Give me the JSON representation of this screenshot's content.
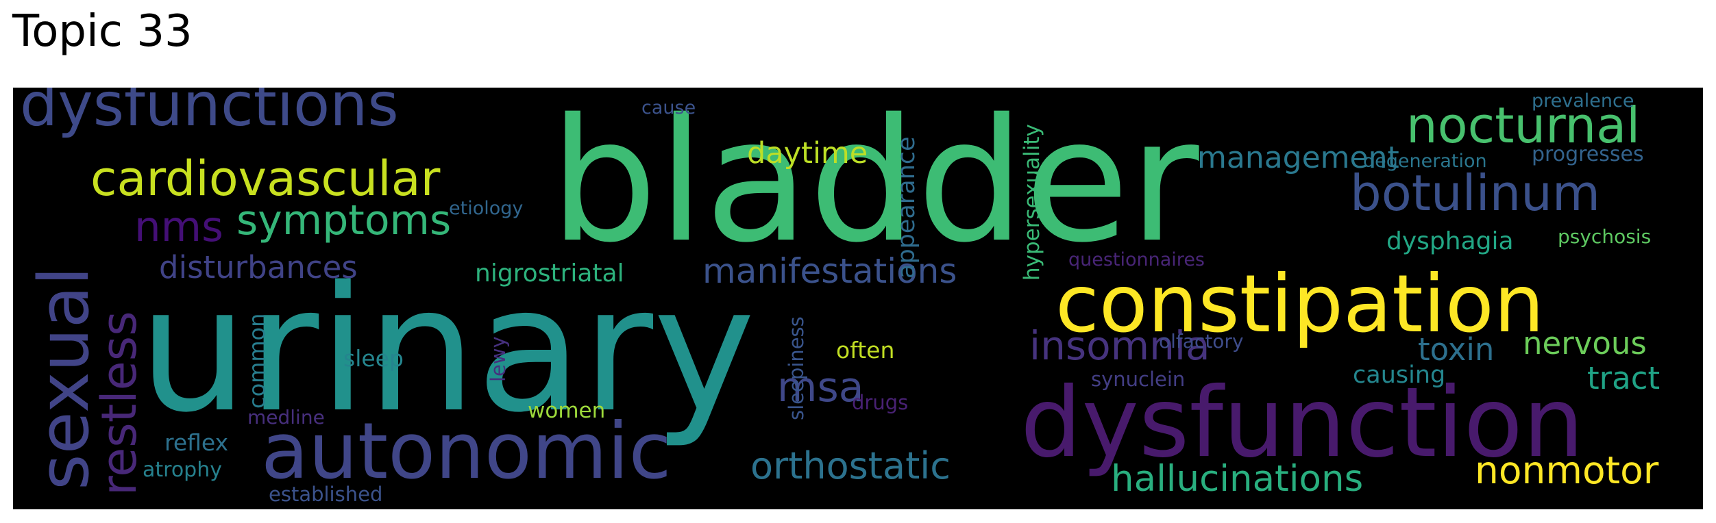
{
  "title": "Topic 33",
  "words": [
    {
      "text": "bladder",
      "color": "#3dbc74"
    },
    {
      "text": "urinary",
      "color": "#21918c"
    },
    {
      "text": "dysfunction",
      "color": "#481a6c"
    },
    {
      "text": "constipation",
      "color": "#fde725"
    },
    {
      "text": "autonomic",
      "color": "#404688"
    },
    {
      "text": "sexual",
      "color": "#414487"
    },
    {
      "text": "dysfunctions",
      "color": "#3e4a89"
    },
    {
      "text": "cardiovascular",
      "color": "#c8e020"
    },
    {
      "text": "nocturnal",
      "color": "#48c16e"
    },
    {
      "text": "botulinum",
      "color": "#3b518b"
    },
    {
      "text": "restless",
      "color": "#482878"
    },
    {
      "text": "symptoms",
      "color": "#35b779"
    },
    {
      "text": "nms",
      "color": "#440f76"
    },
    {
      "text": "insomnia",
      "color": "#46337e"
    },
    {
      "text": "manifestations",
      "color": "#3b528b"
    },
    {
      "text": "msa",
      "color": "#3f4889"
    },
    {
      "text": "orthostatic",
      "color": "#2c728e"
    },
    {
      "text": "hallucinations",
      "color": "#29af7f"
    },
    {
      "text": "nonmotor",
      "color": "#fde725"
    },
    {
      "text": "disturbances",
      "color": "#404387"
    },
    {
      "text": "management",
      "color": "#2a788e"
    },
    {
      "text": "daytime",
      "color": "#bddf26"
    },
    {
      "text": "nigrostriatal",
      "color": "#2db27d"
    },
    {
      "text": "appearance",
      "color": "#2f6c8e"
    },
    {
      "text": "hypersexuality",
      "color": "#3aba76"
    },
    {
      "text": "nervous",
      "color": "#6ccd5a"
    },
    {
      "text": "toxin",
      "color": "#2d708e"
    },
    {
      "text": "tract",
      "color": "#20a386"
    },
    {
      "text": "dysphagia",
      "color": "#22a785"
    },
    {
      "text": "causing",
      "color": "#24868e"
    },
    {
      "text": "often",
      "color": "#c2df23"
    },
    {
      "text": "sleep",
      "color": "#25858e"
    },
    {
      "text": "common",
      "color": "#287d8e"
    },
    {
      "text": "sleepiness",
      "color": "#39558c"
    },
    {
      "text": "lewy",
      "color": "#46307e"
    },
    {
      "text": "women",
      "color": "#9dd93b"
    },
    {
      "text": "reflex",
      "color": "#2d718e"
    },
    {
      "text": "atrophy",
      "color": "#26818e"
    },
    {
      "text": "established",
      "color": "#3b528b"
    },
    {
      "text": "medline",
      "color": "#472f7d"
    },
    {
      "text": "drugs",
      "color": "#482173"
    },
    {
      "text": "synuclein",
      "color": "#433e85"
    },
    {
      "text": "olfactory",
      "color": "#3e4c8a"
    },
    {
      "text": "questionnaires",
      "color": "#482576"
    },
    {
      "text": "etiology",
      "color": "#31668e"
    },
    {
      "text": "cause",
      "color": "#3b528b"
    },
    {
      "text": "prevalence",
      "color": "#2e6f8e"
    },
    {
      "text": "degeneration",
      "color": "#2a768e"
    },
    {
      "text": "progresses",
      "color": "#33638d"
    },
    {
      "text": "psychosis",
      "color": "#5ec962"
    }
  ]
}
